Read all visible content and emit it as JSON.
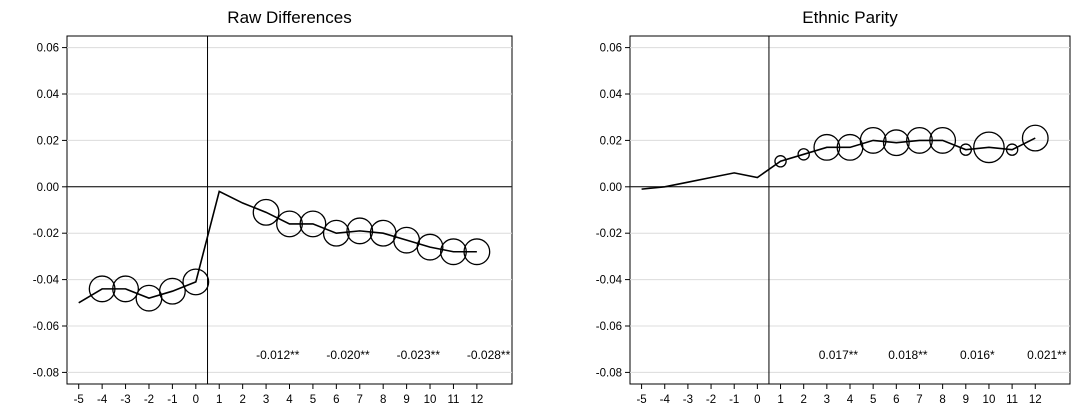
{
  "chart_data": [
    {
      "type": "line",
      "title": "Raw Differences",
      "xlabel": "",
      "ylabel": "",
      "x": [
        -5,
        -4,
        -3,
        -2,
        -1,
        0,
        1,
        2,
        3,
        4,
        5,
        6,
        7,
        8,
        9,
        10,
        11,
        12
      ],
      "x_ticks": [
        "-5",
        "-4",
        "-3",
        "-2",
        "-1",
        "0",
        "1",
        "2",
        "3",
        "4",
        "5",
        "6",
        "7",
        "8",
        "9",
        "10",
        "11",
        "12"
      ],
      "xlim": [
        -5.5,
        13.5
      ],
      "y_ticks": [
        0.06,
        0.04,
        0.02,
        0.0,
        -0.02,
        -0.04,
        -0.06,
        -0.08
      ],
      "y_tick_labels": [
        "0.06",
        "0.04",
        "0.02",
        "0.00",
        "-0.02",
        "-0.04",
        "-0.06",
        "-0.08"
      ],
      "ylim": [
        -0.085,
        0.065
      ],
      "grid": true,
      "reference_lines": {
        "x": 0.5,
        "y": 0
      },
      "series": [
        {
          "values": [
            -0.05,
            -0.044,
            -0.044,
            -0.048,
            -0.045,
            -0.041,
            -0.002,
            -0.007,
            -0.011,
            -0.016,
            -0.016,
            -0.02,
            -0.019,
            -0.02,
            -0.023,
            -0.026,
            -0.028,
            -0.028
          ],
          "marker_size": [
            0,
            5,
            5,
            5,
            5,
            5,
            0,
            0,
            5,
            5,
            5,
            5,
            5,
            5,
            5,
            5,
            5,
            5
          ]
        }
      ],
      "annotations": [
        "-0.012**",
        "-0.020**",
        "-0.023**",
        "-0.028**"
      ]
    },
    {
      "type": "line",
      "title": "Ethnic Parity",
      "xlabel": "",
      "ylabel": "",
      "x": [
        -5,
        -4,
        -3,
        -2,
        -1,
        0,
        1,
        2,
        3,
        4,
        5,
        6,
        7,
        8,
        9,
        10,
        11,
        12
      ],
      "x_ticks": [
        "-5",
        "-4",
        "-3",
        "-2",
        "-1",
        "0",
        "1",
        "2",
        "3",
        "4",
        "5",
        "6",
        "7",
        "8",
        "9",
        "10",
        "11",
        "12"
      ],
      "xlim": [
        -5.5,
        13.5
      ],
      "y_ticks": [
        0.06,
        0.04,
        0.02,
        0.0,
        -0.02,
        -0.04,
        -0.06,
        -0.08
      ],
      "y_tick_labels": [
        "0.06",
        "0.04",
        "0.02",
        "0.00",
        "-0.02",
        "-0.04",
        "-0.06",
        "-0.08"
      ],
      "ylim": [
        -0.085,
        0.065
      ],
      "grid": true,
      "reference_lines": {
        "x": 0.5,
        "y": 0
      },
      "series": [
        {
          "values": [
            -0.001,
            0.0,
            0.002,
            0.004,
            0.006,
            0.004,
            0.011,
            0.014,
            0.017,
            0.017,
            0.02,
            0.019,
            0.02,
            0.02,
            0.016,
            0.017,
            0.016,
            0.021
          ],
          "marker_size": [
            0,
            0,
            0,
            0,
            0,
            0,
            2,
            2,
            5,
            5,
            5,
            5,
            5,
            5,
            2,
            6,
            2,
            5
          ]
        }
      ],
      "annotations": [
        "0.017**",
        "0.018**",
        "0.016*",
        "0.021**"
      ]
    }
  ]
}
